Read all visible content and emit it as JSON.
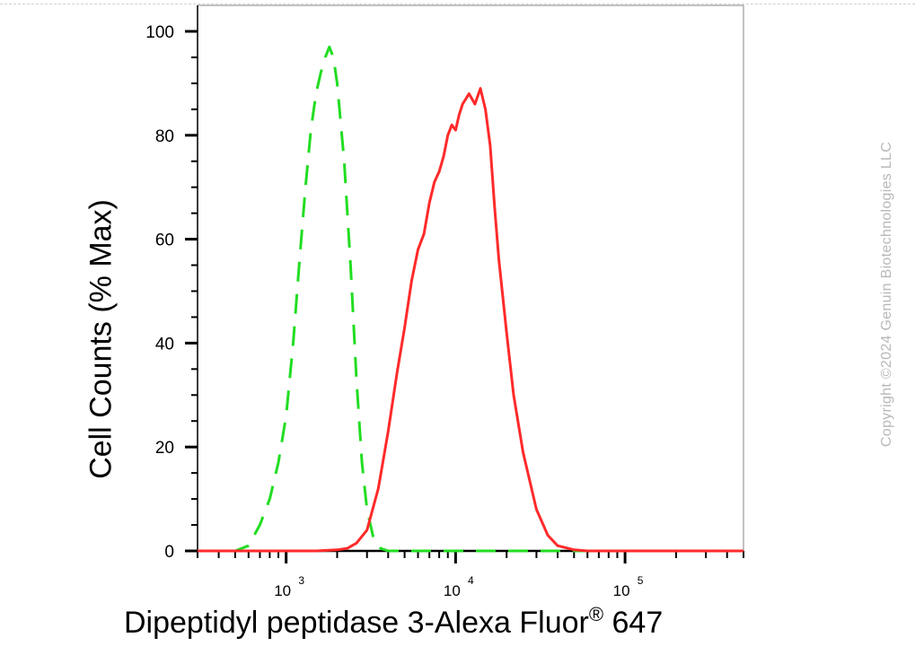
{
  "chart_data": {
    "type": "line",
    "xlabel": {
      "text": "Dipeptidyl peptidase 3-Alexa Fluor",
      "reg": "®",
      "suffix": " 647"
    },
    "ylabel": "Cell Counts (% Max)",
    "x_scale": "log",
    "xlim": [
      300,
      500000
    ],
    "ylim": [
      0,
      105
    ],
    "y_ticks": [
      0,
      20,
      40,
      60,
      80,
      100
    ],
    "x_tick_labels": [
      {
        "value": 1000,
        "base": "10",
        "exp": "3"
      },
      {
        "value": 10000,
        "base": "10",
        "exp": "4"
      },
      {
        "value": 100000,
        "base": "10",
        "exp": "5"
      }
    ],
    "series": [
      {
        "style": "dashed",
        "color": "#22dd22",
        "x": [
          300,
          500,
          600,
          700,
          800,
          900,
          1000,
          1100,
          1200,
          1300,
          1400,
          1500,
          1600,
          1700,
          1800,
          1900,
          2000,
          2200,
          2400,
          2600,
          2800,
          3000,
          3300,
          3600,
          4000,
          4500,
          5000,
          10000,
          50000,
          500000
        ],
        "y": [
          0,
          0,
          1,
          5,
          10,
          17,
          26,
          40,
          56,
          70,
          81,
          88,
          92,
          95,
          97,
          95,
          90,
          75,
          55,
          33,
          17,
          8,
          2,
          0.5,
          0,
          0,
          0,
          0,
          0,
          0
        ]
      },
      {
        "style": "solid",
        "color": "#ff2a2a",
        "x": [
          300,
          1500,
          2000,
          2300,
          2600,
          3000,
          3500,
          4000,
          4500,
          5000,
          5500,
          6000,
          6500,
          7000,
          7500,
          8000,
          8500,
          9000,
          9500,
          10000,
          10500,
          11000,
          11500,
          12000,
          13000,
          14000,
          15000,
          16000,
          17000,
          18000,
          20000,
          22000,
          25000,
          30000,
          35000,
          40000,
          50000,
          60000,
          100000,
          500000
        ],
        "y": [
          0,
          0,
          0.2,
          0.5,
          1.5,
          4,
          12,
          23,
          34,
          43,
          52,
          58,
          61,
          67,
          71,
          73,
          76,
          80,
          82,
          81,
          84,
          86,
          87,
          88,
          86,
          89,
          85,
          78,
          66,
          56,
          42,
          30,
          19,
          8,
          3,
          1,
          0.2,
          0,
          0,
          0
        ]
      }
    ]
  },
  "watermark": "Copyright ©2024 Genuin Biotechnologies LLC"
}
